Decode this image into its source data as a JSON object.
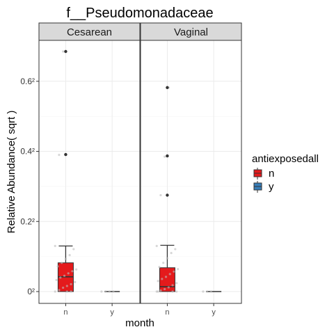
{
  "chart_data": {
    "type": "box",
    "title": "f__Pseudomonadaceae",
    "xlabel": "month",
    "ylabel": "Relative Abundance( sqrt )",
    "y_scale": "sqrt",
    "y_range": [
      0,
      0.68
    ],
    "y_ticks": [
      {
        "value": 0.0,
        "label": "0²"
      },
      {
        "value": 0.2,
        "label": "0.2²"
      },
      {
        "value": 0.4,
        "label": "0.4²"
      },
      {
        "value": 0.6,
        "label": "0.6²"
      }
    ],
    "categories": [
      "n",
      "y"
    ],
    "grid": true,
    "legend": {
      "title": "antiexposedall",
      "position": "right",
      "entries": [
        {
          "label": "n",
          "color": "#e41a1c"
        },
        {
          "label": "y",
          "color": "#377eb8"
        }
      ]
    },
    "panels": [
      {
        "label": "Cesarean",
        "boxes": [
          {
            "category": "n",
            "color": "#e41a1c",
            "whisker_low": 0.0,
            "q1": 0.0,
            "median": 0.042,
            "q3": 0.082,
            "whisker_high": 0.13,
            "outliers": [
              0.391,
              0.685
            ],
            "jitter": [
              0.0,
              0.004,
              0.011,
              0.016,
              0.021,
              0.027,
              0.033,
              0.04,
              0.045,
              0.052,
              0.058,
              0.063,
              0.072,
              0.082,
              0.093,
              0.104,
              0.121,
              0.13,
              0.39,
              0.685,
              0.0,
              0.0
            ]
          },
          {
            "category": "y",
            "color": "#377eb8",
            "whisker_low": 0.0,
            "q1": 0.0,
            "median": 0.0,
            "q3": 0.0,
            "whisker_high": 0.0,
            "outliers": [],
            "jitter": [
              0.0,
              0.0,
              0.0,
              0.0
            ]
          }
        ]
      },
      {
        "label": "Vaginal",
        "boxes": [
          {
            "category": "n",
            "color": "#e41a1c",
            "whisker_low": 0.0,
            "q1": 0.0,
            "median": 0.014,
            "q3": 0.068,
            "whisker_high": 0.132,
            "outliers": [
              0.275,
              0.387,
              0.582
            ],
            "jitter": [
              0.0,
              0.003,
              0.007,
              0.012,
              0.018,
              0.024,
              0.03,
              0.036,
              0.042,
              0.05,
              0.057,
              0.064,
              0.07,
              0.082,
              0.095,
              0.11,
              0.121,
              0.13,
              0.275,
              0.385,
              0.582,
              0.0,
              0.0,
              0.0
            ]
          },
          {
            "category": "y",
            "color": "#377eb8",
            "whisker_low": 0.0,
            "q1": 0.0,
            "median": 0.0,
            "q3": 0.0,
            "whisker_high": 0.0,
            "outliers": [],
            "jitter": [
              0.0,
              0.0,
              0.0
            ]
          }
        ]
      }
    ]
  }
}
